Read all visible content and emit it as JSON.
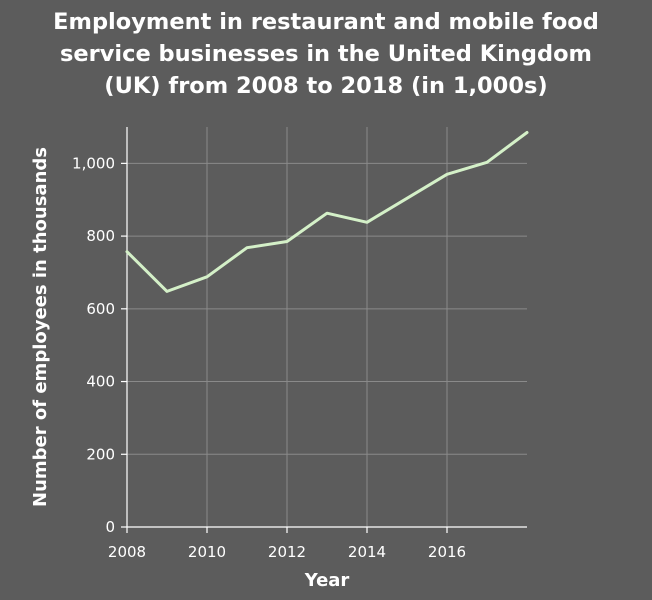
{
  "chart_data": {
    "type": "line",
    "title_lines": [
      "Employment in restaurant and mobile food",
      "service businesses in the United Kingdom",
      "(UK) from 2008 to 2018 (in 1,000s)"
    ],
    "xlabel": "Year",
    "ylabel": "Number of employees in thousands",
    "xlim": [
      2008,
      2018
    ],
    "ylim": [
      0,
      1100
    ],
    "x_ticks": [
      2008,
      2010,
      2012,
      2014,
      2016
    ],
    "x_tick_labels": [
      "2008",
      "2010",
      "2012",
      "2014",
      "2016"
    ],
    "y_ticks": [
      0,
      200,
      400,
      600,
      800,
      1000
    ],
    "y_tick_labels": [
      "0",
      "200",
      "400",
      "600",
      "800",
      "1,000"
    ],
    "grid": true,
    "series": [
      {
        "x": [
          2008,
          2009,
          2010,
          2011,
          2012,
          2013,
          2014,
          2015,
          2016,
          2017,
          2018
        ],
        "values": [
          757,
          648,
          688,
          768,
          785,
          863,
          838,
          904,
          970,
          1003,
          1085
        ]
      }
    ],
    "colors": {
      "background": "#5c5c5c",
      "line": "#d4f0c8",
      "grid": "#8a8a8a",
      "axis": "#ffffff"
    }
  }
}
